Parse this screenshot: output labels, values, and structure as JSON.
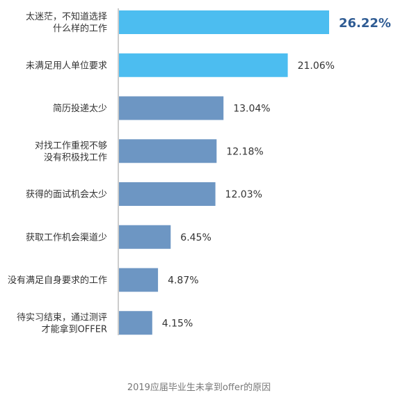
{
  "chart_data": {
    "type": "bar",
    "orientation": "horizontal",
    "title": "2019应届毕业生未拿到offer的原因",
    "unit": "%",
    "categories": [
      [
        "太迷茫，不知道选择",
        "什么样的工作"
      ],
      [
        "未满足用人单位要求"
      ],
      [
        "简历投递太少"
      ],
      [
        "对找工作重视不够",
        "没有积极找工作"
      ],
      [
        "获得的面试机会太少"
      ],
      [
        "获取工作机会渠道少"
      ],
      [
        "没有满足自身要求的工作"
      ],
      [
        "待实习结束，通过测评",
        "才能拿到OFFER"
      ]
    ],
    "values": [
      26.22,
      21.06,
      13.04,
      12.18,
      12.03,
      6.45,
      4.87,
      4.15
    ],
    "value_labels": [
      "26.22%",
      "21.06%",
      "13.04%",
      "12.18%",
      "12.03%",
      "6.45%",
      "4.87%",
      "4.15%"
    ],
    "highlight_count": 2,
    "xlim": [
      0,
      26.22
    ],
    "grid": false,
    "legend": "none",
    "colors": {
      "highlight": "#4cbdf0",
      "normal": "#6d96c3",
      "axis": "#9a9a9a",
      "category_text": "#333333",
      "value_text": "#333333",
      "top_value_text": "#2e5b93",
      "caption_text": "#777777"
    }
  }
}
